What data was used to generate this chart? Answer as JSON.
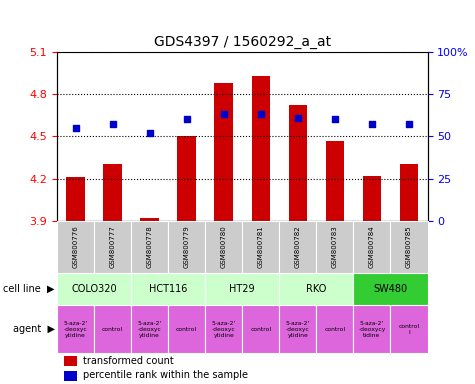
{
  "title": "GDS4397 / 1560292_a_at",
  "samples": [
    "GSM800776",
    "GSM800777",
    "GSM800778",
    "GSM800779",
    "GSM800780",
    "GSM800781",
    "GSM800782",
    "GSM800783",
    "GSM800784",
    "GSM800785"
  ],
  "bar_values": [
    4.21,
    4.3,
    3.92,
    4.5,
    4.88,
    4.93,
    4.72,
    4.47,
    4.22,
    4.3
  ],
  "percentile_values": [
    55,
    57,
    52,
    60,
    63,
    63,
    61,
    60,
    57,
    57
  ],
  "ylim_left": [
    3.9,
    5.1
  ],
  "ylim_right": [
    0,
    100
  ],
  "yticks_left": [
    3.9,
    4.2,
    4.5,
    4.8,
    5.1
  ],
  "yticks_right": [
    0,
    25,
    50,
    75,
    100
  ],
  "bar_color": "#cc0000",
  "dot_color": "#0000cc",
  "cell_lines": [
    {
      "label": "COLO320",
      "span": [
        0,
        2
      ],
      "color": "#ccffcc"
    },
    {
      "label": "HCT116",
      "span": [
        2,
        4
      ],
      "color": "#ccffcc"
    },
    {
      "label": "HT29",
      "span": [
        4,
        6
      ],
      "color": "#ccffcc"
    },
    {
      "label": "RKO",
      "span": [
        6,
        8
      ],
      "color": "#ccffcc"
    },
    {
      "label": "SW480",
      "span": [
        8,
        10
      ],
      "color": "#33cc33"
    }
  ],
  "agents": [
    {
      "label": "5-aza-2'\n-deoxyc\nytidine",
      "span": [
        0,
        1
      ],
      "color": "#dd66dd"
    },
    {
      "label": "control",
      "span": [
        1,
        2
      ],
      "color": "#dd66dd"
    },
    {
      "label": "5-aza-2'\n-deoxyc\nytidine",
      "span": [
        2,
        3
      ],
      "color": "#dd66dd"
    },
    {
      "label": "control",
      "span": [
        3,
        4
      ],
      "color": "#dd66dd"
    },
    {
      "label": "5-aza-2'\n-deoxyc\nytidine",
      "span": [
        4,
        5
      ],
      "color": "#dd66dd"
    },
    {
      "label": "control",
      "span": [
        5,
        6
      ],
      "color": "#dd66dd"
    },
    {
      "label": "5-aza-2'\n-deoxyc\nytidine",
      "span": [
        6,
        7
      ],
      "color": "#dd66dd"
    },
    {
      "label": "control",
      "span": [
        7,
        8
      ],
      "color": "#dd66dd"
    },
    {
      "label": "5-aza-2'\n-deoxycy\ntidine",
      "span": [
        8,
        9
      ],
      "color": "#dd66dd"
    },
    {
      "label": "control\nl",
      "span": [
        9,
        10
      ],
      "color": "#dd66dd"
    }
  ],
  "bar_width": 0.5,
  "sample_bg_color": "#cccccc",
  "legend_red_label": "transformed count",
  "legend_blue_label": "percentile rank within the sample"
}
